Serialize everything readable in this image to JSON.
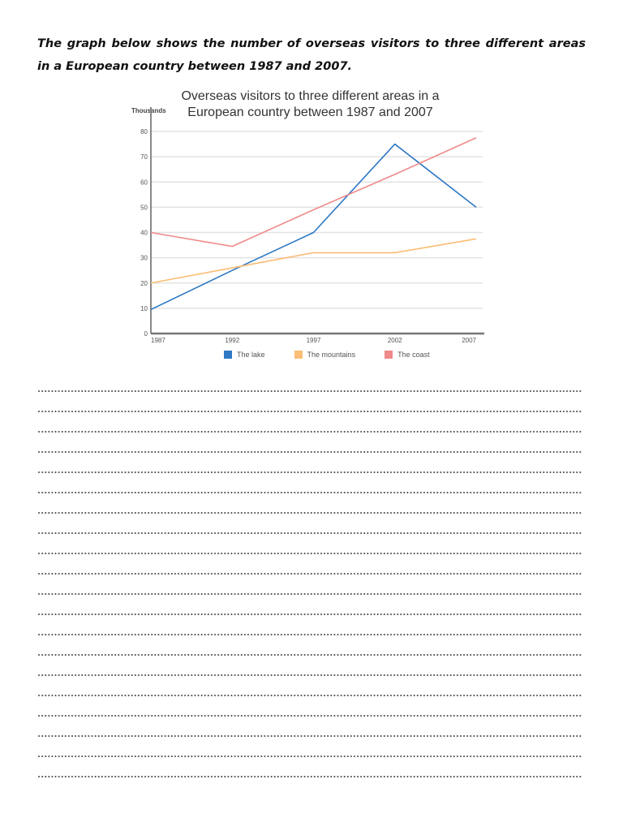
{
  "prompt": {
    "text": "The graph below shows the number of overseas visitors to three different areas in a European country between 1987 and 2007."
  },
  "chart_data": {
    "type": "line",
    "title": "Overseas visitors to three different areas in a European country between 1987 and 2007",
    "title_lines": [
      "Overseas visitors to three different areas in a",
      "European country between 1987 and 2007"
    ],
    "xlabel": "",
    "ylabel": "Thousands",
    "x": [
      "1987",
      "1992",
      "1997",
      "2002",
      "2007"
    ],
    "yticks": [
      0,
      10,
      20,
      30,
      40,
      50,
      60,
      70,
      80
    ],
    "ylim": [
      0,
      80
    ],
    "grid": true,
    "legend_position": "bottom",
    "series": [
      {
        "name": "The lake",
        "color": "#2e78c4",
        "values": [
          9.5,
          25,
          40,
          75,
          50
        ]
      },
      {
        "name": "The mountains",
        "color": "#fcbd74",
        "values": [
          20,
          26,
          32,
          32,
          37.5
        ]
      },
      {
        "name": "The coast",
        "color": "#f08a8a",
        "values": [
          40,
          34.5,
          49,
          63,
          77.5
        ]
      }
    ]
  },
  "answer_lines": {
    "count": 20
  }
}
